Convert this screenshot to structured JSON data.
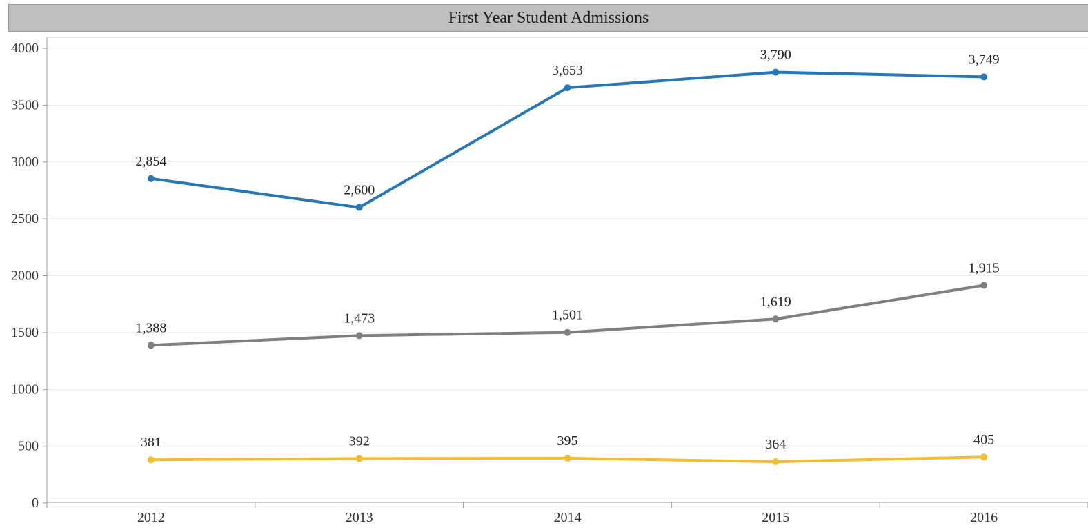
{
  "chart_data": {
    "type": "line",
    "title": "First Year Student Admissions",
    "xlabel": "",
    "ylabel": "",
    "categories": [
      "2012",
      "2013",
      "2014",
      "2015",
      "2016"
    ],
    "ylim": [
      0,
      4000
    ],
    "yticks": [
      0,
      500,
      1000,
      1500,
      2000,
      2500,
      3000,
      3500,
      4000
    ],
    "grid": true,
    "series": [
      {
        "color": "#2677b5",
        "values": [
          2854,
          2600,
          3653,
          3790,
          3749
        ],
        "labels": [
          "2,854",
          "2,600",
          "3,653",
          "3,790",
          "3,749"
        ]
      },
      {
        "color": "#7f7f7f",
        "values": [
          1388,
          1473,
          1501,
          1619,
          1915
        ],
        "labels": [
          "1,388",
          "1,473",
          "1,501",
          "1,619",
          "1,915"
        ]
      },
      {
        "color": "#f0be2e",
        "values": [
          381,
          392,
          395,
          364,
          405
        ],
        "labels": [
          "381",
          "392",
          "395",
          "364",
          "405"
        ]
      }
    ]
  }
}
